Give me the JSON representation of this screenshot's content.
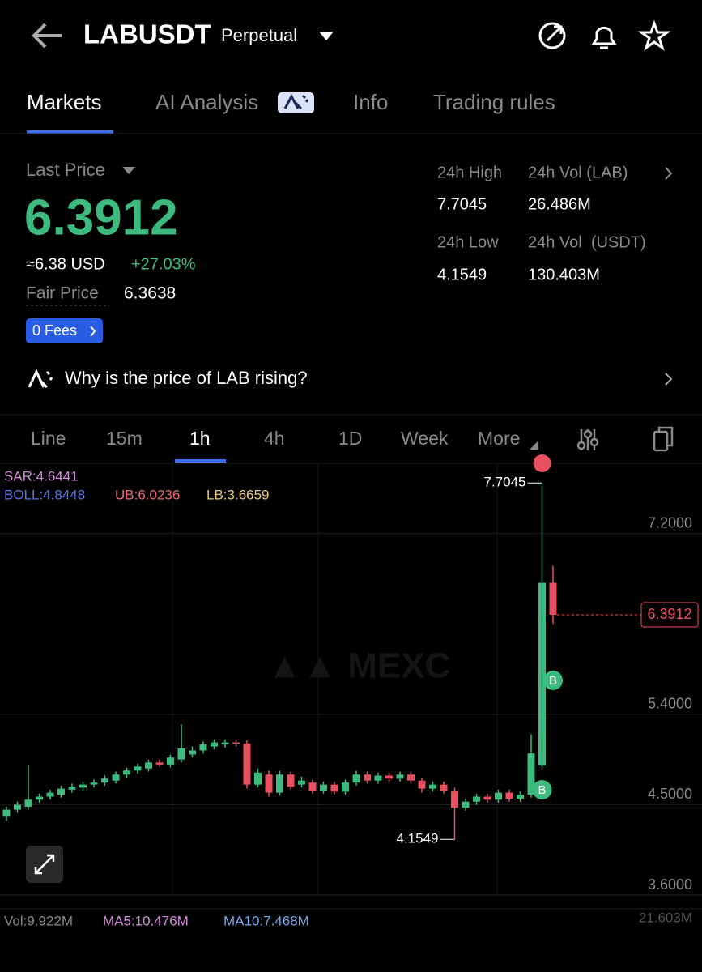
{
  "header": {
    "symbol": "LABUSDT",
    "contract": "Perpetual"
  },
  "tabs": [
    "Markets",
    "AI Analysis",
    "Info",
    "Trading rules"
  ],
  "price_panel": {
    "label": "Last Price",
    "last_price": "6.3912",
    "usd_price": "≈6.38 USD",
    "change": "+27.03%",
    "fair_price_label": "Fair Price",
    "fair_price": "6.3638",
    "fees": "0 Fees"
  },
  "stats": {
    "high_label": "24h High",
    "high": "7.7045",
    "vol_lab_label": "24h Vol (LAB)",
    "vol_lab": "26.486M",
    "low_label": "24h Low",
    "low": "4.1549",
    "vol_usdt_label": "24h Vol  (USDT)",
    "vol_usdt": "130.403M"
  },
  "ai_prompt": "Why is the price of LAB rising?",
  "intervals": [
    "Line",
    "15m",
    "1h",
    "4h",
    "1D",
    "Week",
    "More"
  ],
  "chart_data": {
    "type": "candlestick",
    "open": [
      4.38,
      4.45,
      4.48,
      4.55,
      4.58,
      4.6,
      4.65,
      4.67,
      4.7,
      4.72,
      4.74,
      4.8,
      4.84,
      4.86,
      4.92,
      4.9,
      4.95,
      5.0,
      5.04,
      5.08,
      5.1,
      5.12,
      5.11,
      4.7,
      4.8,
      4.62,
      4.8,
      4.7,
      4.72,
      4.64,
      4.7,
      4.63,
      4.72,
      4.8,
      4.74,
      4.79,
      4.76,
      4.8,
      4.74,
      4.66,
      4.7,
      4.64,
      4.47,
      4.53,
      4.58,
      4.55,
      4.62,
      4.56,
      4.6,
      4.89,
      6.71
    ],
    "high": [
      4.48,
      4.53,
      4.9,
      4.61,
      4.65,
      4.69,
      4.71,
      4.73,
      4.75,
      4.79,
      4.83,
      4.87,
      4.91,
      4.95,
      4.95,
      5.0,
      5.3,
      5.08,
      5.13,
      5.15,
      5.15,
      5.15,
      5.14,
      4.86,
      4.84,
      4.84,
      4.83,
      4.78,
      4.75,
      4.73,
      4.73,
      4.75,
      4.84,
      4.83,
      4.82,
      4.82,
      4.83,
      4.83,
      4.77,
      4.73,
      4.73,
      4.67,
      4.56,
      4.61,
      4.61,
      4.65,
      4.65,
      4.63,
      5.2,
      7.7045,
      6.88
    ],
    "low": [
      4.34,
      4.42,
      4.45,
      4.52,
      4.55,
      4.57,
      4.62,
      4.64,
      4.67,
      4.69,
      4.71,
      4.77,
      4.81,
      4.83,
      4.88,
      4.87,
      4.92,
      4.97,
      5.01,
      5.05,
      5.07,
      5.08,
      4.66,
      4.67,
      4.58,
      4.59,
      4.65,
      4.67,
      4.61,
      4.61,
      4.6,
      4.6,
      4.69,
      4.71,
      4.71,
      4.73,
      4.73,
      4.71,
      4.62,
      4.63,
      4.61,
      4.1549,
      4.44,
      4.5,
      4.52,
      4.52,
      4.53,
      4.53,
      4.57,
      4.85,
      6.3
    ],
    "close": [
      4.45,
      4.5,
      4.55,
      4.58,
      4.62,
      4.66,
      4.68,
      4.7,
      4.72,
      4.76,
      4.8,
      4.84,
      4.88,
      4.92,
      4.9,
      4.97,
      5.06,
      5.04,
      5.1,
      5.12,
      5.12,
      5.11,
      4.7,
      4.82,
      4.62,
      4.8,
      4.68,
      4.74,
      4.64,
      4.7,
      4.63,
      4.72,
      4.8,
      4.74,
      4.79,
      4.76,
      4.8,
      4.74,
      4.66,
      4.7,
      4.64,
      4.47,
      4.53,
      4.58,
      4.55,
      4.62,
      4.56,
      4.6,
      5.01,
      6.71,
      6.3912
    ],
    "up_color": "#3dba7e",
    "down_color": "#e9505f",
    "ylim": [
      3.6,
      7.9
    ],
    "yticks": [
      {
        "value": 3.6,
        "label": "3.6000"
      },
      {
        "value": 4.5,
        "label": "4.5000"
      },
      {
        "value": 5.4,
        "label": "5.4000"
      },
      {
        "value": 7.2,
        "label": "7.2000"
      }
    ],
    "grid": true,
    "indicators": {
      "sar": "SAR:4.6441",
      "boll": "BOLL:4.8448",
      "ub": "UB:6.0236",
      "lb": "LB:3.6659"
    },
    "high_annotation": "7.7045",
    "low_annotation": "4.1549",
    "price_tag": "6.3912",
    "volume": {
      "vol": "Vol:9.922M",
      "ma5": "MA5:10.476M",
      "ma10": "MA10:7.468M",
      "axis_max": "21.603M"
    }
  }
}
